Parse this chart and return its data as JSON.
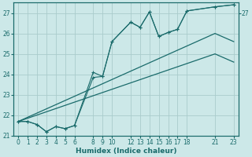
{
  "xlabel": "Humidex (Indice chaleur)",
  "bg_color": "#cce8e8",
  "grid_color": "#aacccc",
  "line_color": "#1a6b6b",
  "ylim": [
    21,
    27.5
  ],
  "xlim": [
    -0.5,
    23.5
  ],
  "yticks": [
    21,
    22,
    23,
    24,
    25,
    26,
    27
  ],
  "xticks": [
    0,
    1,
    2,
    3,
    4,
    5,
    6,
    8,
    9,
    10,
    12,
    13,
    14,
    15,
    16,
    17,
    18,
    21,
    23
  ],
  "line1_x": [
    0,
    1,
    2,
    3,
    4,
    5,
    6,
    8,
    9,
    10,
    12,
    13,
    14,
    15,
    16,
    17,
    18,
    21,
    23
  ],
  "line1_y": [
    21.7,
    21.7,
    21.55,
    21.2,
    21.45,
    21.35,
    21.5,
    23.85,
    23.9,
    25.6,
    26.55,
    26.3,
    27.05,
    25.85,
    26.05,
    26.2,
    27.1,
    27.3,
    27.4
  ],
  "line2_x": [
    0,
    1,
    2,
    3,
    4,
    5,
    6,
    8,
    9,
    10,
    12,
    13,
    14,
    15,
    16,
    17,
    18,
    21,
    23
  ],
  "line2_y": [
    21.7,
    21.7,
    21.55,
    21.2,
    21.45,
    21.35,
    21.5,
    24.1,
    23.9,
    25.6,
    26.55,
    26.3,
    27.05,
    25.85,
    26.05,
    26.2,
    27.1,
    27.3,
    27.4
  ],
  "line3_x": [
    0,
    21,
    23
  ],
  "line3_y": [
    21.7,
    26.0,
    25.6
  ],
  "line4_x": [
    0,
    21,
    23
  ],
  "line4_y": [
    21.7,
    25.0,
    24.6
  ],
  "right_ytick_label": "27",
  "right_ytick_y": 27
}
